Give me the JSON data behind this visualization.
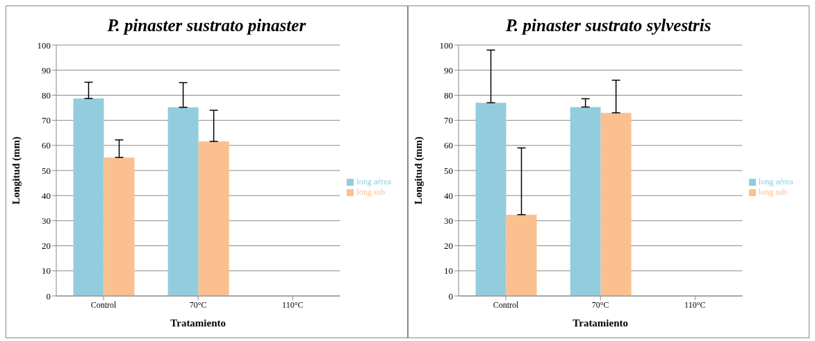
{
  "chart_data": [
    {
      "type": "bar",
      "title": "P. pinaster sustrato pinaster",
      "xlabel": "Tratamiento",
      "ylabel": "Longitud (mm)",
      "categories": [
        "Control",
        "70°C",
        "110°C"
      ],
      "series": [
        {
          "name": "long aérea",
          "color": "#93cddd",
          "values": [
            78.7,
            75.2,
            null
          ],
          "errors": [
            [
              78.7,
              85.2
            ],
            [
              75.2,
              85
            ],
            null
          ]
        },
        {
          "name": "long sub",
          "color": "#fac090",
          "values": [
            55.2,
            61.6,
            null
          ],
          "errors": [
            [
              55.2,
              62.2
            ],
            [
              61.6,
              74
            ],
            null
          ]
        }
      ],
      "ylim": [
        0,
        100
      ],
      "yticks": [
        0,
        10,
        20,
        30,
        40,
        50,
        60,
        70,
        80,
        90,
        100
      ],
      "grid": "y",
      "legend": "right"
    },
    {
      "type": "bar",
      "title": "P. pinaster sustrato sylvestris",
      "xlabel": "Tratamiento",
      "ylabel": "Longitud (mm)",
      "categories": [
        "Control",
        "70°C",
        "110°C"
      ],
      "series": [
        {
          "name": "long aérea",
          "color": "#93cddd",
          "values": [
            77,
            75.3,
            null
          ],
          "errors": [
            [
              77,
              98
            ],
            [
              75.3,
              78.6
            ],
            null
          ]
        },
        {
          "name": "long sub",
          "color": "#fac090",
          "values": [
            32.4,
            73,
            null
          ],
          "errors": [
            [
              32.4,
              59
            ],
            [
              73,
              86
            ],
            null
          ]
        }
      ],
      "ylim": [
        0,
        100
      ],
      "yticks": [
        0,
        10,
        20,
        30,
        40,
        50,
        60,
        70,
        80,
        90,
        100
      ],
      "grid": "y",
      "legend": "right"
    }
  ]
}
